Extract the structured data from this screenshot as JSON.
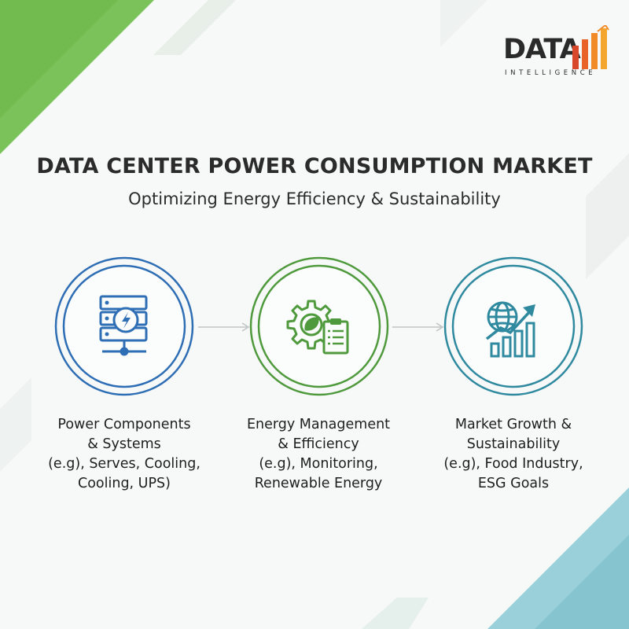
{
  "logo": {
    "word": "DATA",
    "tagline": "INTELLIGENCE"
  },
  "header": {
    "title": "DATA CENTER POWER CONSUMPTION MARKET",
    "subtitle": "Optimizing Energy Efficiency & Sustainability"
  },
  "steps": [
    {
      "icon": "server-power-icon",
      "color": "#2e6eb5",
      "lines": [
        "Power Components",
        "& Systems",
        "(e.g), Serves, Cooling,",
        "Cooling, UPS)"
      ]
    },
    {
      "icon": "gear-leaf-clipboard-icon",
      "color": "#4f9a3c",
      "lines": [
        "Energy Management",
        "& Efficiency",
        "(e.g), Monitoring,",
        "Renewable Energy"
      ]
    },
    {
      "icon": "globe-growth-chart-icon",
      "color": "#2f8aa0",
      "lines": [
        "Market Growth &",
        "Sustainability",
        "(e.g), Food Industry,",
        "ESG Goals"
      ]
    }
  ],
  "colors": {
    "green_accent": "#79c05a",
    "teal_accent": "#8fcbd6",
    "logo_red": "#d9472b",
    "logo_orange": "#f08b28"
  }
}
